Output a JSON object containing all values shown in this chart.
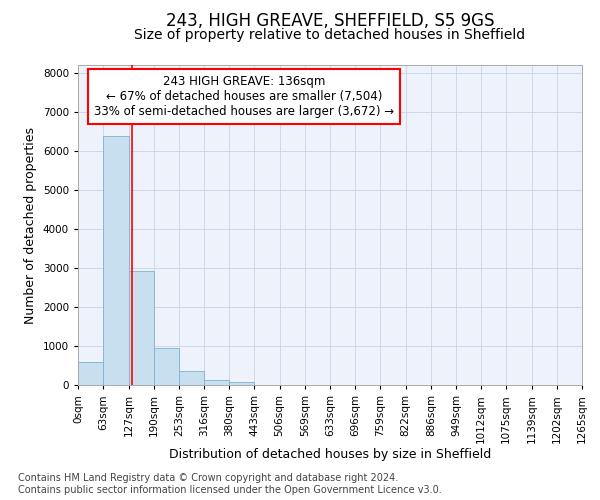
{
  "title": "243, HIGH GREAVE, SHEFFIELD, S5 9GS",
  "subtitle": "Size of property relative to detached houses in Sheffield",
  "xlabel": "Distribution of detached houses by size in Sheffield",
  "ylabel": "Number of detached properties",
  "footer_line1": "Contains HM Land Registry data © Crown copyright and database right 2024.",
  "footer_line2": "Contains public sector information licensed under the Open Government Licence v3.0.",
  "annotation_line1": "243 HIGH GREAVE: 136sqm",
  "annotation_line2": "← 67% of detached houses are smaller (7,504)",
  "annotation_line3": "33% of semi-detached houses are larger (3,672) →",
  "bar_edges": [
    0,
    63,
    127,
    190,
    253,
    316,
    380,
    443,
    506,
    569,
    633,
    696,
    759,
    822,
    886,
    949,
    1012,
    1075,
    1139,
    1202,
    1265
  ],
  "bar_heights": [
    580,
    6380,
    2920,
    960,
    360,
    130,
    70,
    0,
    0,
    0,
    0,
    0,
    0,
    0,
    0,
    0,
    0,
    0,
    0,
    0
  ],
  "bar_color": "#c8dff0",
  "bar_edge_color": "#7eb0d0",
  "property_line_x": 136,
  "property_line_color": "red",
  "annotation_box_color": "red",
  "background_color": "#eef2fa",
  "grid_color": "#c8d4e8",
  "ylim": [
    0,
    8200
  ],
  "yticks": [
    0,
    1000,
    2000,
    3000,
    4000,
    5000,
    6000,
    7000,
    8000
  ],
  "tick_label_fontsize": 7.5,
  "axis_label_fontsize": 9,
  "title_fontsize": 12,
  "subtitle_fontsize": 10,
  "footer_fontsize": 7
}
